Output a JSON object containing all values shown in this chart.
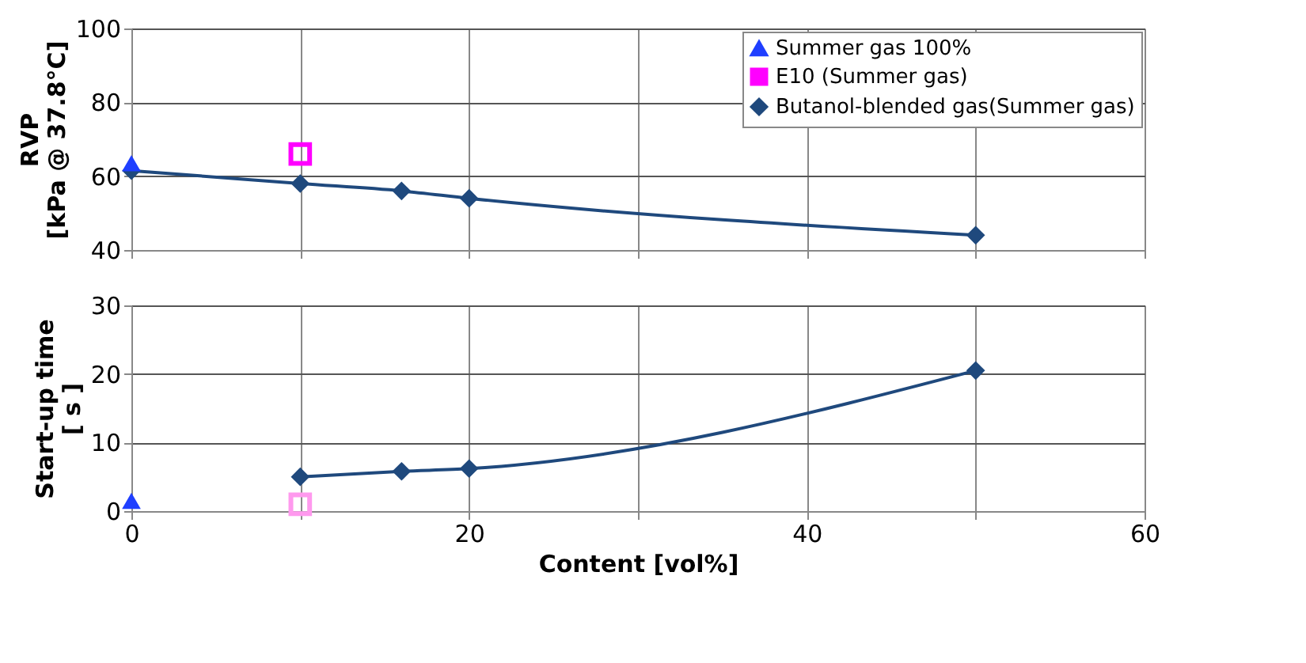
{
  "chart_data": [
    {
      "type": "scatter",
      "ylabel": "RVP\n[kPa @ 37.8°C]",
      "xlim": [
        0,
        60
      ],
      "xticks": [
        0,
        {
          "value": 10,
          "label": null
        },
        20,
        {
          "value": 30,
          "label": null
        },
        40,
        {
          "value": 50,
          "label": null
        },
        60
      ],
      "ylim": [
        40,
        100
      ],
      "yticks": [
        40,
        60,
        80,
        100
      ],
      "tick_labels": "y",
      "grid": true,
      "legend": "top right",
      "series": [
        {
          "name": "Summer gas 100%",
          "marker": "triangle",
          "color": "#1f3fff",
          "x": [
            0
          ],
          "values": [
            63.5
          ]
        },
        {
          "name": "E10 (Summer gas)",
          "marker": "square",
          "color": "#ff00ff",
          "x": [
            10
          ],
          "values": [
            66
          ]
        },
        {
          "name": "Butanol-blended gas(Summer gas)",
          "type": "line",
          "marker": "diamond",
          "color": "#1f497d",
          "x": [
            0,
            10,
            16,
            20,
            50
          ],
          "values": [
            61.5,
            58,
            56,
            54,
            44
          ]
        }
      ]
    },
    {
      "type": "scatter",
      "xlabel": "Content [vol%]",
      "ylabel": "Start-up time\n[ s ]",
      "xlim": [
        0,
        60
      ],
      "xticks": [
        0,
        {
          "value": 10,
          "label": null
        },
        20,
        {
          "value": 30,
          "label": null
        },
        40,
        {
          "value": 50,
          "label": null
        },
        60
      ],
      "ylim": [
        0,
        30
      ],
      "yticks": [
        0,
        10,
        20,
        30
      ],
      "grid": true,
      "series": [
        {
          "marker": "triangle",
          "color": "#1f3fff",
          "x": [
            0
          ],
          "values": [
            1.5
          ]
        },
        {
          "marker": "square",
          "color": "#ff99ee",
          "x": [
            10
          ],
          "values": [
            1
          ]
        },
        {
          "type": "line",
          "marker": "diamond",
          "color": "#1f497d",
          "x": [
            10,
            16,
            20,
            50
          ],
          "values": [
            5,
            5.8,
            6.2,
            20.5
          ]
        }
      ]
    }
  ]
}
